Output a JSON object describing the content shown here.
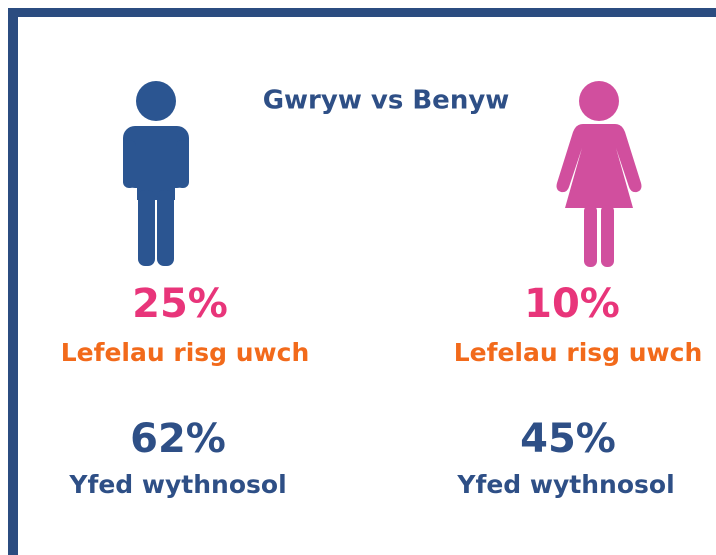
{
  "title": "Gwryw vs Benyw",
  "groups": [
    {
      "stats": [
        {
          "value": "25%",
          "label": "Lefelau risg uwch"
        },
        {
          "value": "62%",
          "label": "Yfed wythnosol"
        }
      ]
    },
    {
      "stats": [
        {
          "value": "10%",
          "label": "Lefelau risg uwch"
        },
        {
          "value": "45%",
          "label": "Yfed wythnosol"
        }
      ]
    }
  ]
}
